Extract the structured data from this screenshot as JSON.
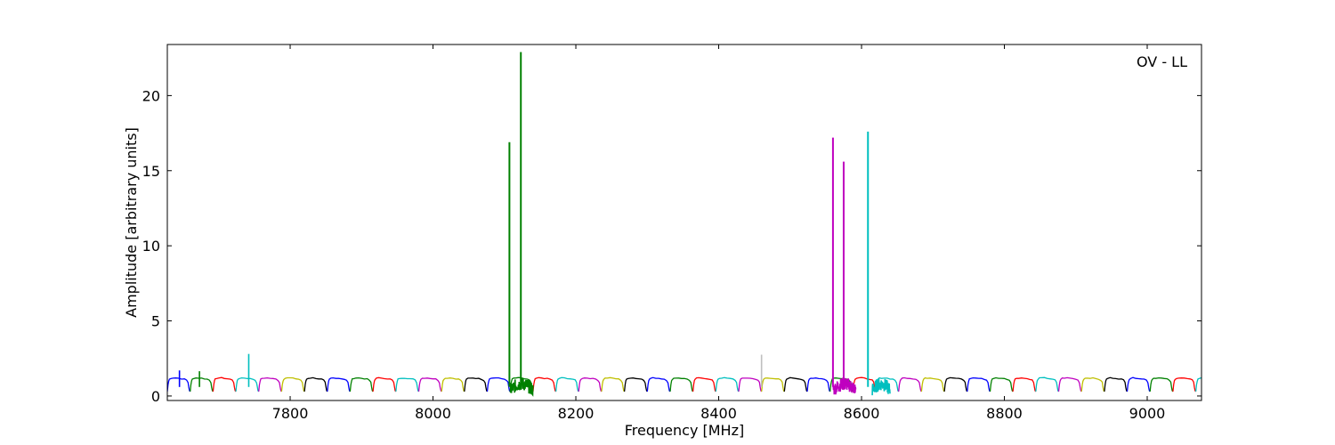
{
  "chart_data": {
    "type": "line",
    "title": "",
    "annotation": "OV - LL",
    "xlabel": "Frequency [MHz]",
    "ylabel": "Amplitude [arbitrary units]",
    "xlim": [
      7628,
      9076
    ],
    "ylim": [
      -0.3,
      23.4
    ],
    "xticks": [
      7800,
      8000,
      8200,
      8400,
      8600,
      8800,
      9000
    ],
    "yticks": [
      0,
      5,
      10,
      15,
      20
    ],
    "grid": false,
    "legend": "none",
    "band_width_mhz": 32,
    "band_start_mhz": 7628,
    "band_colors": [
      "#0000ff",
      "#008000",
      "#ff0000",
      "#00bfbf",
      "#bf00bf",
      "#bfbf00",
      "#000000"
    ],
    "band_shape": {
      "x_offsets": [
        0,
        1,
        2,
        3,
        5,
        8,
        12,
        16,
        20,
        24,
        27,
        29,
        30,
        31,
        32
      ],
      "y_values": [
        0.3,
        0.75,
        1.0,
        1.12,
        1.18,
        1.2,
        1.2,
        1.18,
        1.15,
        1.12,
        1.05,
        0.9,
        0.6,
        0.35,
        0.3
      ]
    },
    "peaks": [
      {
        "x": 7645,
        "y": 1.7,
        "color": "#0000ff"
      },
      {
        "x": 7673,
        "y": 1.65,
        "color": "#008000"
      },
      {
        "x": 7742,
        "y": 2.8,
        "color": "#00bfbf"
      },
      {
        "x": 8107,
        "y": 16.9,
        "color": "#008000"
      },
      {
        "x": 8123,
        "y": 22.9,
        "color": "#008000"
      },
      {
        "x": 8460,
        "y": 2.75,
        "color": "#bfbfbf"
      },
      {
        "x": 8560,
        "y": 17.2,
        "color": "#bf00bf"
      },
      {
        "x": 8575,
        "y": 15.6,
        "color": "#bf00bf"
      },
      {
        "x": 8609,
        "y": 17.6,
        "color": "#00bfbf"
      }
    ],
    "noisy_regions": [
      {
        "x_start": 8108,
        "x_end": 8140,
        "color": "#008000"
      },
      {
        "x_start": 8560,
        "x_end": 8592,
        "color": "#bf00bf"
      },
      {
        "x_start": 8615,
        "x_end": 8640,
        "color": "#00bfbf"
      }
    ]
  }
}
